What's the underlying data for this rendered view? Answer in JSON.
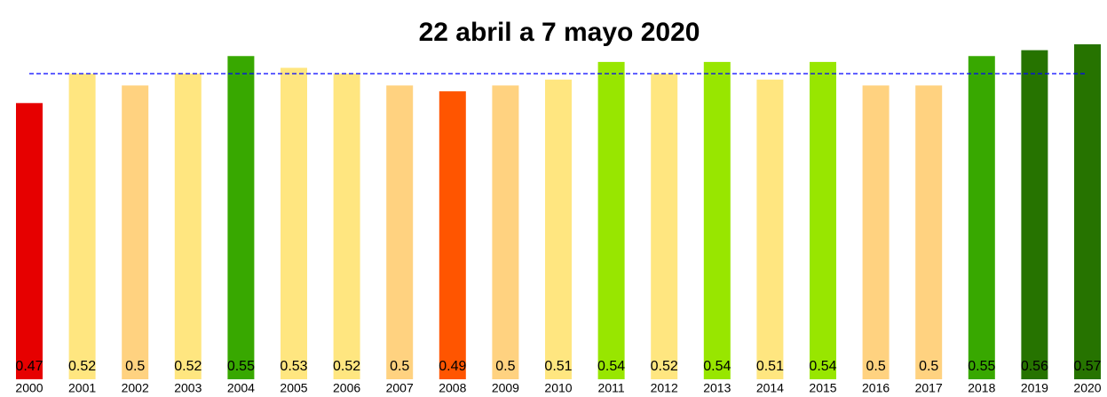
{
  "chart_data": {
    "type": "bar",
    "title": "22 abril a 7 mayo 2020",
    "categories": [
      "2000",
      "2001",
      "2002",
      "2003",
      "2004",
      "2005",
      "2006",
      "2007",
      "2008",
      "2009",
      "2010",
      "2011",
      "2012",
      "2013",
      "2014",
      "2015",
      "2016",
      "2017",
      "2018",
      "2019",
      "2020"
    ],
    "values": [
      0.47,
      0.52,
      0.5,
      0.52,
      0.55,
      0.53,
      0.52,
      0.5,
      0.49,
      0.5,
      0.51,
      0.54,
      0.52,
      0.54,
      0.51,
      0.54,
      0.5,
      0.5,
      0.55,
      0.56,
      0.57
    ],
    "colors": [
      "#e60000",
      "#ffe680",
      "#ffd280",
      "#ffe680",
      "#38a800",
      "#ffe680",
      "#ffe680",
      "#ffd280",
      "#ff5500",
      "#ffd280",
      "#ffe680",
      "#98e600",
      "#ffe680",
      "#98e600",
      "#ffe680",
      "#98e600",
      "#ffd280",
      "#ffd280",
      "#38a800",
      "#267300",
      "#267300"
    ],
    "ylim": [
      0,
      0.57
    ],
    "reference_line": 0.52,
    "reference_color": "#0000ff"
  }
}
